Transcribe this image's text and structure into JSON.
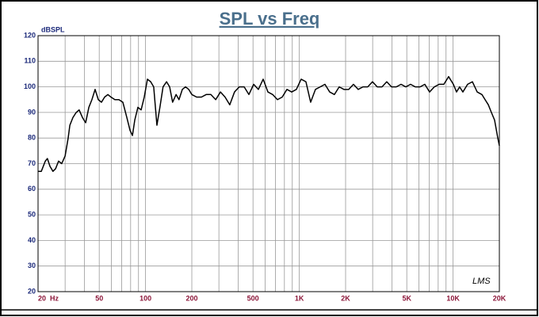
{
  "chart_data": {
    "type": "line",
    "title": "SPL vs Freq",
    "ylabel": "dBSPL",
    "annotation": "LMS",
    "x": [
      20,
      21,
      22.3,
      23,
      23.9,
      25,
      26,
      27.2,
      28.5,
      30,
      31.4,
      32.2,
      33.7,
      35.4,
      37,
      38.9,
      40.8,
      42.8,
      44.8,
      47,
      49.3,
      51.7,
      54.2,
      56.9,
      59.6,
      63.2,
      67.1,
      71.2,
      75.6,
      79.3,
      82.2,
      85.1,
      89.2,
      93.6,
      98.1,
      102.9,
      108,
      113,
      118.6,
      124,
      130,
      137,
      143.5,
      150,
      158,
      165,
      173.5,
      182,
      191,
      200,
      215,
      231,
      248,
      266,
      286,
      307,
      329,
      353,
      379,
      407,
      438,
      470,
      505,
      542,
      582,
      625,
      671,
      721,
      774,
      831,
      892,
      957,
      1028,
      1104,
      1185,
      1273,
      1367,
      1468,
      1576,
      1692,
      1817,
      1951,
      2095,
      2250,
      2416,
      2594,
      2786,
      2992,
      3212,
      3450,
      3704,
      3978,
      4272,
      4587,
      4926,
      5290,
      5680,
      6100,
      6550,
      7034,
      7554,
      8111,
      8710,
      9354,
      10045,
      10530,
      11030,
      11580,
      12430,
      13360,
      14350,
      15400,
      16150,
      16950,
      17750,
      18620,
      19540,
      20000
    ],
    "series": [
      {
        "name": "SPL",
        "color": "#000000",
        "values": [
          67,
          67,
          71,
          72,
          69,
          67,
          68,
          71,
          70,
          73,
          80,
          85,
          88,
          90,
          91,
          88,
          86,
          92,
          95,
          99,
          95,
          94,
          96,
          97,
          96,
          95,
          95,
          94,
          88,
          83,
          81,
          87,
          92,
          91,
          96,
          103,
          102,
          100,
          85,
          92,
          100,
          102,
          100,
          94,
          97,
          95,
          99,
          100,
          99,
          97,
          96,
          96,
          97,
          97,
          95,
          98,
          96,
          93,
          98,
          100,
          100,
          97,
          101,
          99,
          103,
          98,
          97,
          95,
          96,
          99,
          98,
          99,
          103,
          102,
          94,
          99,
          100,
          101,
          98,
          97,
          100,
          99,
          99,
          101,
          99,
          100,
          100,
          102,
          100,
          100,
          102,
          100,
          100,
          101,
          100,
          101,
          100,
          100,
          101,
          98,
          100,
          101,
          101,
          104,
          101,
          98,
          100,
          98,
          101,
          102,
          98,
          97,
          95,
          93,
          90,
          87,
          80,
          77
        ]
      }
    ],
    "xscale": "log",
    "xlim": [
      20,
      20000
    ],
    "xticks": [
      {
        "value": 20,
        "label": "20  Hz"
      },
      50,
      100,
      200,
      500,
      {
        "value": 1000,
        "label": "1K"
      },
      {
        "value": 2000,
        "label": "2K"
      },
      {
        "value": 5000,
        "label": "5K"
      },
      {
        "value": 10000,
        "label": "10K"
      },
      {
        "value": 20000,
        "label": "20K"
      }
    ],
    "xgrid": [
      20,
      30,
      40,
      50,
      60,
      70,
      80,
      90,
      100,
      200,
      300,
      400,
      500,
      600,
      700,
      800,
      900,
      1000,
      2000,
      3000,
      4000,
      5000,
      6000,
      7000,
      8000,
      9000,
      10000,
      20000
    ],
    "ylim": [
      20,
      120
    ],
    "yticks": [
      20,
      30,
      40,
      50,
      60,
      70,
      80,
      90,
      100,
      110,
      120
    ],
    "grid": true
  }
}
